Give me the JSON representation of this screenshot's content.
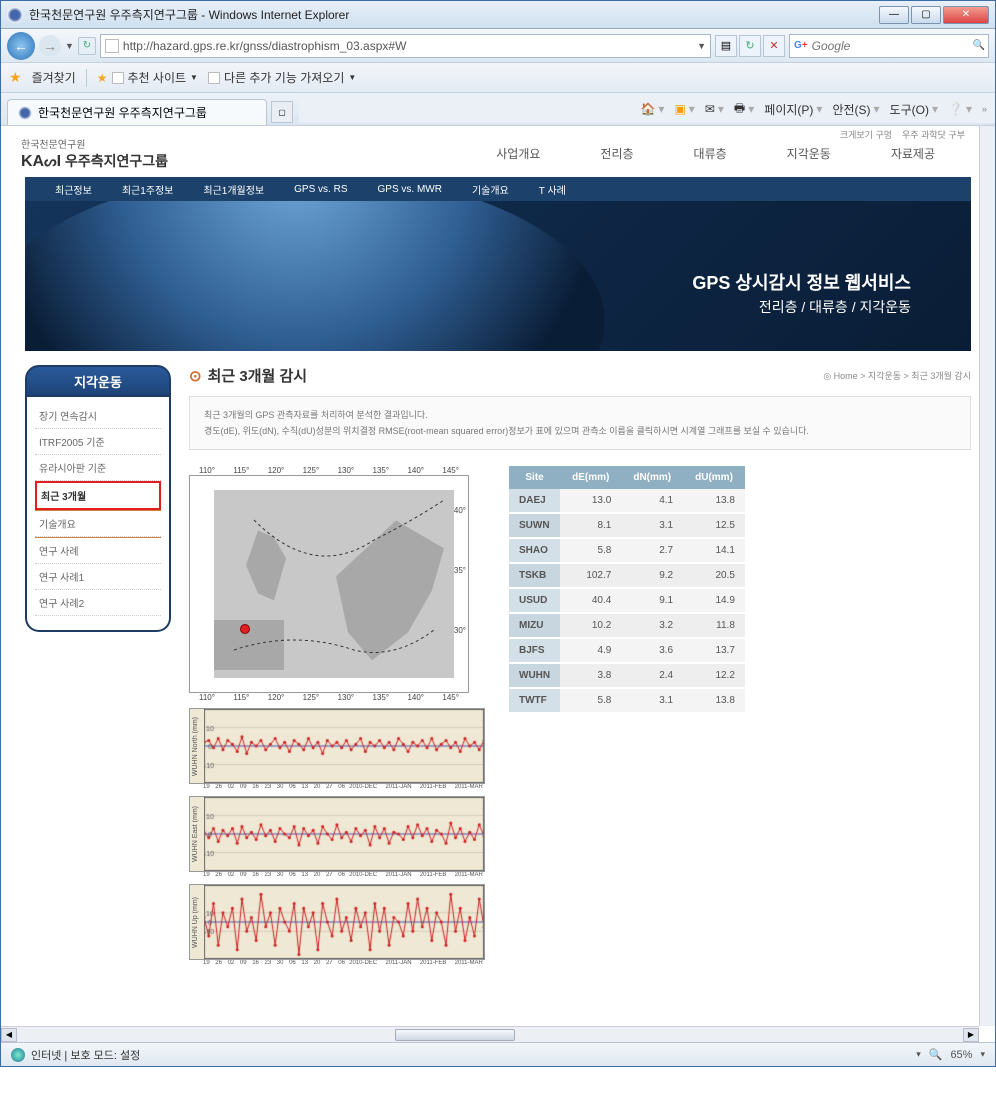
{
  "window": {
    "title": "한국천문연구원 우주측지연구그룹 - Windows Internet Explorer"
  },
  "address": {
    "url": "http://hazard.gps.re.kr/gnss/diastrophism_03.aspx#W"
  },
  "search": {
    "placeholder": "Google"
  },
  "favbar": {
    "label": "즐겨찾기",
    "item1": "추천 사이트",
    "item2": "다른 추가 기능 가져오기"
  },
  "tab": {
    "title": "한국천문연구원 우주측지연구그룹"
  },
  "commandbar": {
    "page": "페이지(P)",
    "safety": "안전(S)",
    "tools": "도구(O)"
  },
  "top_links": {
    "a": "크게보기 구멍",
    "b": "우주 과학닷 구부"
  },
  "logo": {
    "sub": "한국천문연구원",
    "main_prefix": "KA",
    "main_suffix": "I",
    "name": "우주측지연구그룹"
  },
  "mainnav": {
    "a": "사업개요",
    "b": "전리층",
    "c": "대류층",
    "d": "지각운동",
    "e": "자료제공"
  },
  "subnav": {
    "a": "최근정보",
    "b": "최근1주정보",
    "c": "최근1개월정보",
    "d": "GPS vs. RS",
    "e": "GPS vs. MWR",
    "f": "기술개요",
    "g": "T 사례"
  },
  "banner": {
    "title1": "GPS 상시감시 정보 웹서비스",
    "title2": "전리층 / 대류층 / 지각운동"
  },
  "sidebar": {
    "title": "지각운동",
    "items": {
      "i0": "장기 연속감시",
      "i1": "ITRF2005 기준",
      "i2": "유라시아판 기준",
      "i3": "최근 3개월",
      "i4": "기술개요",
      "i5": "연구 사례",
      "i6": "연구 사례1",
      "i7": "연구 사례2"
    }
  },
  "page_title": "최근 3개월 감시",
  "breadcrumb": "◎ Home > 지각운동 > 최근 3개월 감시",
  "desc": {
    "l1": "최근 3개월의 GPS 관측자료를 처리하여 분석한 결과입니다.",
    "l2": "경도(dE), 위도(dN), 수직(dU)성분의 위치결정 RMSE(root-mean squared error)정보가 표에 있으며 관측소 이름을 클릭하시면 시계열 그래프를 보실 수 있습니다."
  },
  "map": {
    "lon_ticks": [
      "110°",
      "115°",
      "120°",
      "125°",
      "130°",
      "135°",
      "140°",
      "145°"
    ],
    "lat_ticks": [
      "40°",
      "35°",
      "30°"
    ]
  },
  "table": {
    "headers": {
      "site": "Site",
      "de": "dE(mm)",
      "dn": "dN(mm)",
      "du": "dU(mm)"
    },
    "rows": [
      {
        "site": "DAEJ",
        "de": "13.0",
        "dn": "4.1",
        "du": "13.8"
      },
      {
        "site": "SUWN",
        "de": "8.1",
        "dn": "3.1",
        "du": "12.5"
      },
      {
        "site": "SHAO",
        "de": "5.8",
        "dn": "2.7",
        "du": "14.1"
      },
      {
        "site": "TSKB",
        "de": "102.7",
        "dn": "9.2",
        "du": "20.5"
      },
      {
        "site": "USUD",
        "de": "40.4",
        "dn": "9.1",
        "du": "14.9"
      },
      {
        "site": "MIZU",
        "de": "10.2",
        "dn": "3.2",
        "du": "11.8"
      },
      {
        "site": "BJFS",
        "de": "4.9",
        "dn": "3.6",
        "du": "13.7"
      },
      {
        "site": "WUHN",
        "de": "3.8",
        "dn": "2.4",
        "du": "12.2"
      },
      {
        "site": "TWTF",
        "de": "5.8",
        "dn": "3.1",
        "du": "13.8"
      }
    ]
  },
  "charts": {
    "ylabels": {
      "north": "WUHN North (mm)",
      "east": "WUHN East (mm)",
      "up": "WUHN Up (mm)"
    },
    "ylim": [
      -20,
      20
    ],
    "ylim_up": [
      -40,
      40
    ],
    "grid_color": "#b8b0a0",
    "line_color": "#d02020",
    "zero_color": "#5060c0",
    "background": "#efe8d4",
    "xtick_groups": [
      "19",
      "26",
      "02",
      "09",
      "16",
      "23",
      "30",
      "06",
      "13",
      "20",
      "27",
      "06"
    ],
    "xlabels": [
      "2010-DEC",
      "2011-JAN",
      "2011-FEB",
      "2011-MAR"
    ],
    "north_data": [
      2,
      3,
      -1,
      4,
      -2,
      3,
      1,
      -3,
      5,
      -4,
      2,
      0,
      3,
      -2,
      1,
      4,
      -1,
      2,
      -3,
      3,
      1,
      -2,
      4,
      -1,
      2,
      -4,
      3,
      0,
      2,
      -1,
      3,
      -2,
      1,
      4,
      -3,
      2,
      0,
      3,
      -1,
      2,
      -2,
      4,
      1,
      -3,
      2,
      0,
      3,
      -1,
      4,
      -2,
      1,
      3,
      -1,
      2,
      -3,
      4,
      0,
      2,
      -2,
      3
    ],
    "east_data": [
      1,
      -2,
      3,
      -4,
      2,
      -1,
      3,
      -5,
      4,
      -2,
      1,
      -3,
      5,
      -1,
      2,
      -4,
      3,
      0,
      -2,
      4,
      -6,
      3,
      -1,
      2,
      -5,
      4,
      0,
      -3,
      5,
      -2,
      1,
      -4,
      3,
      -1,
      2,
      -6,
      4,
      -2,
      3,
      -5,
      1,
      0,
      -3,
      4,
      -2,
      5,
      -1,
      3,
      -4,
      2,
      0,
      -5,
      6,
      -2,
      3,
      -4,
      1,
      -3,
      5,
      -1
    ],
    "up_data": [
      5,
      -15,
      20,
      -25,
      10,
      -5,
      15,
      -30,
      25,
      -10,
      5,
      -20,
      30,
      -5,
      10,
      -25,
      15,
      0,
      -10,
      20,
      -35,
      15,
      -5,
      10,
      -30,
      20,
      0,
      -15,
      25,
      -10,
      5,
      -20,
      15,
      -5,
      10,
      -30,
      20,
      -10,
      15,
      -25,
      5,
      0,
      -15,
      20,
      -10,
      25,
      -5,
      15,
      -20,
      10,
      0,
      -25,
      30,
      -10,
      15,
      -20,
      5,
      -15,
      25,
      -5
    ]
  },
  "status": {
    "text": "인터넷 | 보호 모드: 설정",
    "zoom": "65%"
  }
}
